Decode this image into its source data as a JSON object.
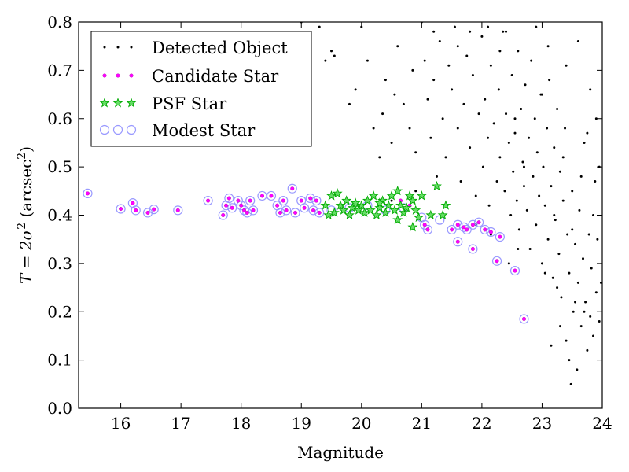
{
  "chart_data": {
    "type": "scatter",
    "xlabel": "Magnitude",
    "ylabel_prefix": "T = 2σ",
    "ylabel_exp": "2",
    "ylabel_unit_open": " (arcsec",
    "ylabel_unit_exp": "2",
    "ylabel_unit_close": ")",
    "xlim": [
      15.3,
      24
    ],
    "ylim": [
      0.0,
      0.8
    ],
    "x_ticks": [
      16,
      17,
      18,
      19,
      20,
      21,
      22,
      23,
      24
    ],
    "x_tick_labels": [
      "16",
      "17",
      "18",
      "19",
      "20",
      "21",
      "22",
      "23",
      "24"
    ],
    "y_ticks": [
      0.0,
      0.1,
      0.2,
      0.3,
      0.4,
      0.5,
      0.6,
      0.7,
      0.8
    ],
    "y_tick_labels": [
      "0.0",
      "0.1",
      "0.2",
      "0.3",
      "0.4",
      "0.5",
      "0.6",
      "0.7",
      "0.8"
    ],
    "grid": false,
    "legend_position": "top-left",
    "series": [
      {
        "name": "Detected Object",
        "marker": "dot",
        "color": "#000000",
        "points": [
          [
            19.0,
            0.8
          ],
          [
            19.3,
            0.79
          ],
          [
            19.4,
            0.72
          ],
          [
            19.5,
            0.74
          ],
          [
            19.55,
            0.73
          ],
          [
            19.8,
            0.63
          ],
          [
            19.9,
            0.66
          ],
          [
            20.0,
            0.79
          ],
          [
            20.1,
            0.72
          ],
          [
            20.2,
            0.58
          ],
          [
            20.3,
            0.52
          ],
          [
            20.35,
            0.61
          ],
          [
            20.4,
            0.68
          ],
          [
            20.5,
            0.55
          ],
          [
            20.55,
            0.65
          ],
          [
            20.6,
            0.75
          ],
          [
            20.7,
            0.63
          ],
          [
            20.8,
            0.58
          ],
          [
            20.85,
            0.7
          ],
          [
            20.9,
            0.53
          ],
          [
            21.0,
            0.8
          ],
          [
            21.05,
            0.72
          ],
          [
            21.1,
            0.64
          ],
          [
            21.15,
            0.56
          ],
          [
            21.2,
            0.68
          ],
          [
            21.25,
            0.48
          ],
          [
            21.3,
            0.76
          ],
          [
            21.35,
            0.6
          ],
          [
            21.4,
            0.52
          ],
          [
            21.45,
            0.71
          ],
          [
            21.5,
            0.66
          ],
          [
            21.55,
            0.79
          ],
          [
            21.6,
            0.58
          ],
          [
            21.65,
            0.47
          ],
          [
            21.7,
            0.63
          ],
          [
            21.75,
            0.73
          ],
          [
            21.8,
            0.54
          ],
          [
            21.85,
            0.69
          ],
          [
            21.9,
            0.44
          ],
          [
            21.95,
            0.61
          ],
          [
            22.0,
            0.77
          ],
          [
            22.02,
            0.5
          ],
          [
            22.05,
            0.64
          ],
          [
            22.1,
            0.56
          ],
          [
            22.12,
            0.42
          ],
          [
            22.15,
            0.71
          ],
          [
            22.2,
            0.59
          ],
          [
            22.25,
            0.47
          ],
          [
            22.28,
            0.66
          ],
          [
            22.3,
            0.52
          ],
          [
            22.35,
            0.78
          ],
          [
            22.38,
            0.45
          ],
          [
            22.4,
            0.61
          ],
          [
            22.45,
            0.55
          ],
          [
            22.48,
            0.4
          ],
          [
            22.5,
            0.69
          ],
          [
            22.52,
            0.49
          ],
          [
            22.55,
            0.57
          ],
          [
            22.58,
            0.43
          ],
          [
            22.6,
            0.74
          ],
          [
            22.62,
            0.37
          ],
          [
            22.65,
            0.62
          ],
          [
            22.68,
            0.51
          ],
          [
            22.7,
            0.46
          ],
          [
            22.72,
            0.67
          ],
          [
            22.75,
            0.41
          ],
          [
            22.78,
            0.56
          ],
          [
            22.8,
            0.33
          ],
          [
            22.82,
            0.72
          ],
          [
            22.85,
            0.48
          ],
          [
            22.88,
            0.6
          ],
          [
            22.9,
            0.38
          ],
          [
            22.92,
            0.53
          ],
          [
            22.95,
            0.44
          ],
          [
            22.98,
            0.65
          ],
          [
            23.0,
            0.3
          ],
          [
            23.02,
            0.5
          ],
          [
            23.05,
            0.42
          ],
          [
            23.08,
            0.58
          ],
          [
            23.1,
            0.35
          ],
          [
            23.12,
            0.68
          ],
          [
            23.15,
            0.46
          ],
          [
            23.18,
            0.27
          ],
          [
            23.2,
            0.54
          ],
          [
            23.22,
            0.39
          ],
          [
            23.25,
            0.62
          ],
          [
            23.28,
            0.32
          ],
          [
            23.3,
            0.49
          ],
          [
            23.32,
            0.23
          ],
          [
            23.35,
            0.43
          ],
          [
            23.38,
            0.58
          ],
          [
            23.4,
            0.14
          ],
          [
            23.42,
            0.36
          ],
          [
            23.45,
            0.28
          ],
          [
            23.48,
            0.05
          ],
          [
            23.5,
            0.45
          ],
          [
            23.52,
            0.2
          ],
          [
            23.55,
            0.34
          ],
          [
            23.58,
            0.08
          ],
          [
            23.6,
            0.26
          ],
          [
            23.62,
            0.41
          ],
          [
            23.65,
            0.17
          ],
          [
            23.68,
            0.31
          ],
          [
            23.7,
            0.55
          ],
          [
            23.72,
            0.22
          ],
          [
            23.75,
            0.12
          ],
          [
            23.78,
            0.36
          ],
          [
            23.8,
            0.19
          ],
          [
            23.82,
            0.29
          ],
          [
            23.85,
            0.15
          ],
          [
            23.88,
            0.47
          ],
          [
            23.9,
            0.24
          ],
          [
            23.92,
            0.35
          ],
          [
            23.95,
            0.18
          ],
          [
            23.98,
            0.26
          ],
          [
            21.6,
            0.75
          ],
          [
            22.1,
            0.79
          ],
          [
            22.3,
            0.74
          ],
          [
            22.4,
            0.78
          ],
          [
            23.6,
            0.76
          ],
          [
            23.4,
            0.71
          ],
          [
            23.8,
            0.66
          ],
          [
            23.9,
            0.6
          ],
          [
            23.1,
            0.75
          ],
          [
            22.9,
            0.79
          ],
          [
            21.8,
            0.78
          ],
          [
            21.2,
            0.78
          ],
          [
            20.5,
            0.43
          ],
          [
            20.9,
            0.45
          ],
          [
            21.9,
            0.38
          ],
          [
            22.15,
            0.36
          ],
          [
            22.6,
            0.33
          ],
          [
            22.45,
            0.3
          ],
          [
            23.05,
            0.28
          ],
          [
            23.25,
            0.25
          ],
          [
            23.55,
            0.22
          ],
          [
            23.7,
            0.2
          ],
          [
            23.3,
            0.17
          ],
          [
            23.15,
            0.13
          ],
          [
            23.45,
            0.1
          ],
          [
            22.7,
            0.5
          ],
          [
            22.55,
            0.6
          ],
          [
            23.0,
            0.65
          ],
          [
            23.35,
            0.52
          ],
          [
            23.65,
            0.48
          ],
          [
            23.75,
            0.57
          ],
          [
            23.95,
            0.5
          ],
          [
            23.85,
            0.4
          ],
          [
            23.5,
            0.37
          ],
          [
            23.2,
            0.4
          ]
        ]
      },
      {
        "name": "Candidate Star",
        "marker": "dot",
        "color": "#ff00ff",
        "points": [
          [
            15.45,
            0.445
          ],
          [
            16.0,
            0.413
          ],
          [
            16.2,
            0.425
          ],
          [
            16.25,
            0.41
          ],
          [
            16.45,
            0.405
          ],
          [
            16.55,
            0.412
          ],
          [
            16.95,
            0.41
          ],
          [
            17.45,
            0.43
          ],
          [
            17.7,
            0.4
          ],
          [
            17.75,
            0.42
          ],
          [
            17.8,
            0.435
          ],
          [
            17.85,
            0.415
          ],
          [
            17.95,
            0.43
          ],
          [
            18.0,
            0.42
          ],
          [
            18.05,
            0.41
          ],
          [
            18.1,
            0.405
          ],
          [
            18.15,
            0.43
          ],
          [
            18.2,
            0.41
          ],
          [
            18.35,
            0.44
          ],
          [
            18.5,
            0.44
          ],
          [
            18.6,
            0.42
          ],
          [
            18.65,
            0.405
          ],
          [
            18.7,
            0.43
          ],
          [
            18.75,
            0.41
          ],
          [
            18.85,
            0.455
          ],
          [
            18.9,
            0.405
          ],
          [
            19.0,
            0.43
          ],
          [
            19.05,
            0.415
          ],
          [
            19.15,
            0.435
          ],
          [
            19.2,
            0.41
          ],
          [
            19.25,
            0.43
          ],
          [
            19.3,
            0.405
          ],
          [
            20.65,
            0.43
          ],
          [
            20.8,
            0.42
          ],
          [
            21.05,
            0.38
          ],
          [
            21.1,
            0.37
          ],
          [
            21.5,
            0.37
          ],
          [
            21.6,
            0.38
          ],
          [
            21.7,
            0.375
          ],
          [
            21.75,
            0.37
          ],
          [
            21.85,
            0.38
          ],
          [
            21.95,
            0.385
          ],
          [
            22.05,
            0.37
          ],
          [
            22.15,
            0.365
          ],
          [
            22.3,
            0.355
          ],
          [
            22.25,
            0.305
          ],
          [
            21.85,
            0.33
          ],
          [
            21.6,
            0.345
          ],
          [
            22.55,
            0.285
          ],
          [
            22.7,
            0.185
          ]
        ]
      },
      {
        "name": "PSF Star",
        "marker": "star",
        "color": "#00aa00",
        "points": [
          [
            19.4,
            0.42
          ],
          [
            19.45,
            0.4
          ],
          [
            19.5,
            0.44
          ],
          [
            19.55,
            0.405
          ],
          [
            19.6,
            0.445
          ],
          [
            19.65,
            0.42
          ],
          [
            19.7,
            0.41
          ],
          [
            19.75,
            0.43
          ],
          [
            19.8,
            0.4
          ],
          [
            19.85,
            0.415
          ],
          [
            19.9,
            0.425
          ],
          [
            19.95,
            0.41
          ],
          [
            20.0,
            0.42
          ],
          [
            20.05,
            0.405
          ],
          [
            20.1,
            0.43
          ],
          [
            20.15,
            0.41
          ],
          [
            20.2,
            0.44
          ],
          [
            20.25,
            0.4
          ],
          [
            20.3,
            0.415
          ],
          [
            20.35,
            0.43
          ],
          [
            20.4,
            0.405
          ],
          [
            20.45,
            0.42
          ],
          [
            20.5,
            0.44
          ],
          [
            20.55,
            0.41
          ],
          [
            20.6,
            0.45
          ],
          [
            20.65,
            0.42
          ],
          [
            20.7,
            0.405
          ],
          [
            20.75,
            0.415
          ],
          [
            20.8,
            0.44
          ],
          [
            20.85,
            0.43
          ],
          [
            20.9,
            0.41
          ],
          [
            20.95,
            0.395
          ],
          [
            21.0,
            0.44
          ],
          [
            21.15,
            0.4
          ],
          [
            21.25,
            0.46
          ],
          [
            21.35,
            0.4
          ],
          [
            21.4,
            0.42
          ],
          [
            20.6,
            0.39
          ],
          [
            20.85,
            0.375
          ],
          [
            20.3,
            0.425
          ]
        ]
      },
      {
        "name": "Modest Star",
        "marker": "open-circle",
        "color": "#9999ff",
        "points": [
          [
            15.45,
            0.445
          ],
          [
            16.0,
            0.413
          ],
          [
            16.2,
            0.425
          ],
          [
            16.25,
            0.41
          ],
          [
            16.45,
            0.405
          ],
          [
            16.55,
            0.412
          ],
          [
            16.95,
            0.41
          ],
          [
            17.45,
            0.43
          ],
          [
            17.7,
            0.4
          ],
          [
            17.75,
            0.42
          ],
          [
            17.8,
            0.435
          ],
          [
            17.85,
            0.415
          ],
          [
            17.95,
            0.43
          ],
          [
            18.0,
            0.42
          ],
          [
            18.05,
            0.41
          ],
          [
            18.1,
            0.405
          ],
          [
            18.15,
            0.43
          ],
          [
            18.2,
            0.41
          ],
          [
            18.35,
            0.44
          ],
          [
            18.5,
            0.44
          ],
          [
            18.6,
            0.42
          ],
          [
            18.65,
            0.405
          ],
          [
            18.7,
            0.43
          ],
          [
            18.75,
            0.41
          ],
          [
            18.85,
            0.455
          ],
          [
            18.9,
            0.405
          ],
          [
            19.0,
            0.43
          ],
          [
            19.05,
            0.415
          ],
          [
            19.15,
            0.435
          ],
          [
            19.2,
            0.41
          ],
          [
            19.25,
            0.43
          ],
          [
            19.3,
            0.405
          ],
          [
            19.5,
            0.41
          ],
          [
            19.8,
            0.415
          ],
          [
            20.1,
            0.42
          ],
          [
            20.4,
            0.41
          ],
          [
            20.7,
            0.415
          ],
          [
            21.05,
            0.38
          ],
          [
            21.1,
            0.37
          ],
          [
            21.5,
            0.37
          ],
          [
            21.6,
            0.38
          ],
          [
            21.7,
            0.375
          ],
          [
            21.75,
            0.37
          ],
          [
            21.85,
            0.38
          ],
          [
            21.95,
            0.385
          ],
          [
            22.05,
            0.37
          ],
          [
            22.15,
            0.365
          ],
          [
            22.3,
            0.355
          ],
          [
            22.25,
            0.305
          ],
          [
            21.85,
            0.33
          ],
          [
            21.6,
            0.345
          ],
          [
            22.55,
            0.285
          ],
          [
            22.7,
            0.185
          ],
          [
            21.3,
            0.39
          ],
          [
            21.0,
            0.395
          ]
        ]
      }
    ]
  }
}
